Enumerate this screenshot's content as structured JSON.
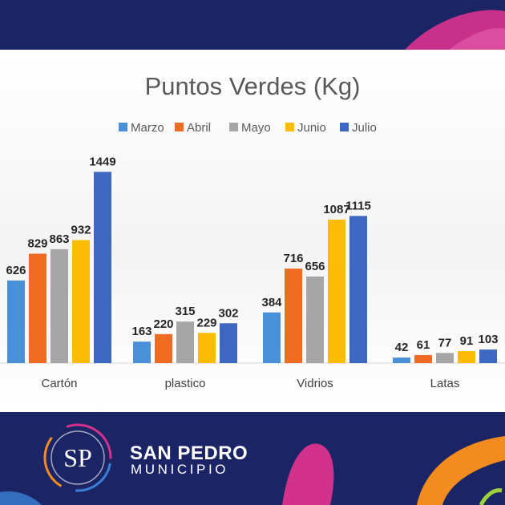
{
  "chart_data": {
    "type": "bar",
    "title": "Puntos Verdes (Kg)",
    "xlabel": "",
    "ylabel": "",
    "ylim": [
      0,
      1500
    ],
    "grid": false,
    "legend_position": "top",
    "categories": [
      "Cartón",
      "plastico",
      "Vidrios",
      "Latas"
    ],
    "series": [
      {
        "name": "Marzo",
        "color": "#4a90d9",
        "values": [
          626,
          163,
          384,
          42
        ]
      },
      {
        "name": "Abril",
        "color": "#ef6c22",
        "values": [
          829,
          220,
          716,
          61
        ]
      },
      {
        "name": "Mayo",
        "color": "#a6a6a6",
        "values": [
          863,
          315,
          656,
          77
        ]
      },
      {
        "name": "Junio",
        "color": "#fcbc05",
        "values": [
          932,
          229,
          1087,
          91
        ]
      },
      {
        "name": "Julio",
        "color": "#3e67c1",
        "values": [
          1449,
          302,
          1115,
          103
        ]
      }
    ]
  },
  "brand": {
    "monogram": "SP",
    "name": "SAN PEDRO",
    "subtitle": "MUNICIPIO"
  },
  "colors": {
    "navy": "#1b2566",
    "magenta": "#d2328c",
    "orange": "#f28c1e"
  }
}
